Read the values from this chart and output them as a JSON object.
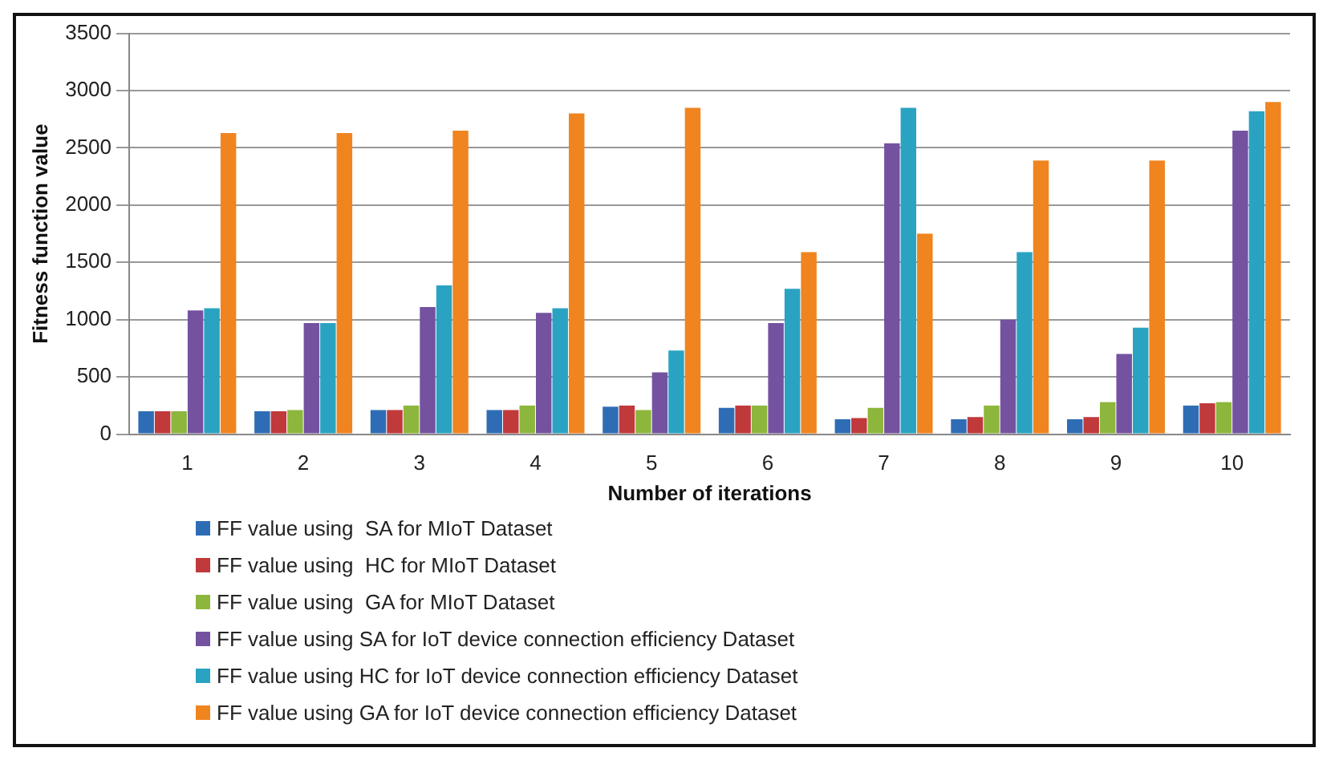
{
  "chart_data": {
    "type": "bar",
    "xlabel": "Number of iterations",
    "ylabel": "Fitness function value",
    "categories": [
      "1",
      "2",
      "3",
      "4",
      "5",
      "6",
      "7",
      "8",
      "9",
      "10"
    ],
    "series": [
      {
        "name": "FF value using  SA for MIoT Dataset",
        "color": "#2e6db5",
        "values": [
          200,
          200,
          210,
          210,
          240,
          230,
          130,
          130,
          130,
          250
        ]
      },
      {
        "name": "FF value using  HC for MIoT Dataset",
        "color": "#c0393b",
        "values": [
          200,
          200,
          210,
          210,
          250,
          250,
          140,
          150,
          150,
          270
        ]
      },
      {
        "name": "FF value using  GA for MIoT Dataset",
        "color": "#8db63c",
        "values": [
          200,
          210,
          250,
          250,
          210,
          250,
          230,
          250,
          280,
          280
        ]
      },
      {
        "name": "FF value using SA for IoT device connection efficiency Dataset",
        "color": "#7452a0",
        "values": [
          1080,
          970,
          1110,
          1060,
          540,
          970,
          2540,
          1000,
          700,
          2650
        ]
      },
      {
        "name": "FF value using HC for IoT device connection efficiency Dataset",
        "color": "#2aa3c2",
        "values": [
          1100,
          970,
          1300,
          1100,
          730,
          1270,
          2850,
          1590,
          930,
          2820
        ]
      },
      {
        "name": "FF value using GA for IoT device connection efficiency Dataset",
        "color": "#f0841f",
        "values": [
          2630,
          2630,
          2650,
          2800,
          2850,
          1590,
          1750,
          2390,
          2390,
          2900
        ]
      }
    ],
    "ylim": [
      0,
      3500
    ],
    "yticks": [
      0,
      500,
      1000,
      1500,
      2000,
      2500,
      3000,
      3500
    ],
    "grid": "y",
    "legend": "bottom"
  }
}
